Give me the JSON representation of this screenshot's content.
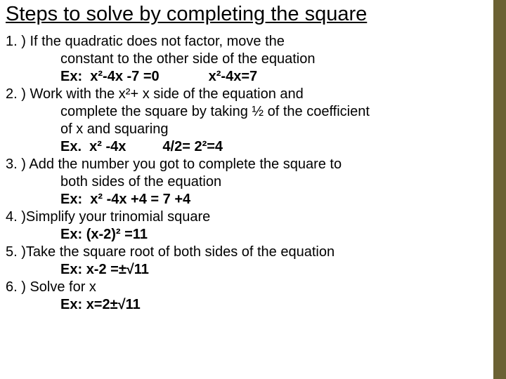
{
  "colors": {
    "background": "#ffffff",
    "text": "#000000",
    "accent_bar": "#6b6133"
  },
  "typography": {
    "title_fontsize": 29,
    "body_fontsize": 20,
    "font_family": "Arial"
  },
  "title": "Steps to solve by completing the square",
  "steps": [
    {
      "number": "1. ) ",
      "text": "If the  quadratic does not factor, move the",
      "indented": [
        "constant to the other side of the equation"
      ],
      "example_label": "Ex:",
      "example_a": "x²-4x -7 =0",
      "example_b": "x²-4x=7"
    },
    {
      "number": "2. ) ",
      "text": "Work with the x²+ x side of the equation and",
      "indented": [
        "complete the square by taking ½ of the coefficient",
        "of x and squaring"
      ],
      "example_label": "Ex.",
      "example_a": "x² -4x",
      "example_b": "4/2= 2²=4"
    },
    {
      "number": "3. ) ",
      "text": "Add the number you got to complete the square to",
      "indented": [
        "both sides of the equation"
      ],
      "example_label": "Ex:",
      "example_a": "x² -4x +4 = 7 +4",
      "example_b": ""
    },
    {
      "number": "4. )",
      "text": "Simplify your trinomial square",
      "indented": [],
      "example_label": "Ex:",
      "example_a": "(x-2)² =11",
      "example_b": ""
    },
    {
      "number": "5. )",
      "text": "Take the square root of both sides of the equation",
      "indented": [],
      "example_label": "Ex:",
      "example_a": "x-2 =±√11",
      "example_b": ""
    },
    {
      "number": "6. ) ",
      "text": "Solve for x",
      "indented": [],
      "example_label": "Ex:",
      "example_a": "x=2±√11",
      "example_b": ""
    }
  ]
}
